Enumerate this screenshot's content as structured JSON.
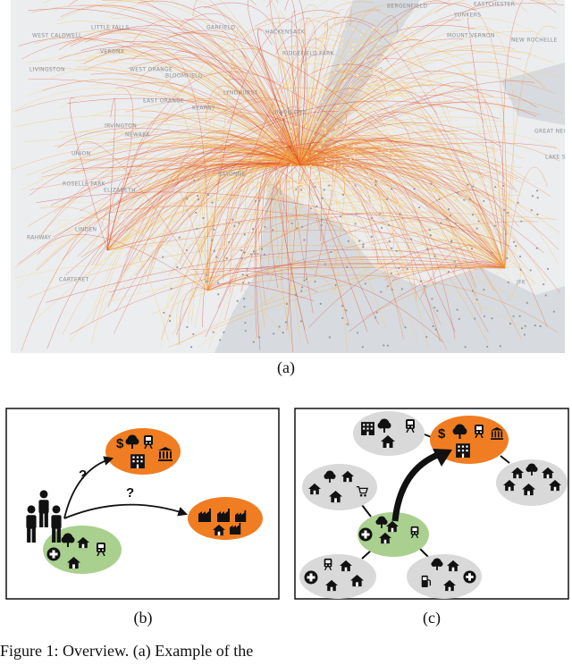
{
  "map": {
    "labels": [
      "BERGENFIELD",
      "YONKERS",
      "EASTCHESTER",
      "WEST CALDWELL",
      "LITTLE FALLS",
      "GARFIELD",
      "HACKENSACK",
      "RIDGEFIELD PARK",
      "MOUNT VERNON",
      "NEW ROCHELLE",
      "LIVINGSTON",
      "WEST ORANGE",
      "VERONA",
      "BLOOMFIELD",
      "LYNDHURST",
      "EAST ORANGE",
      "KEARNY",
      "IRVINGTON",
      "NEWARK",
      "UNION CITY",
      "UNION",
      "ROSELLE PARK",
      "ELIZABETH",
      "BAYONNE",
      "LINDEN",
      "RAHWAY",
      "CARTERET",
      "GREAT NECK",
      "LAKE SUCCESS",
      "JFK"
    ]
  },
  "panels": {
    "a": "(a)",
    "b": "(b)",
    "c": "(c)"
  },
  "diagram_b": {
    "question_marks": [
      "?",
      "?"
    ],
    "dollar_sign": "$"
  },
  "diagram_c": {
    "dollar_sign": "$"
  },
  "caption": "Figure 1: Overview. (a) Example of the"
}
